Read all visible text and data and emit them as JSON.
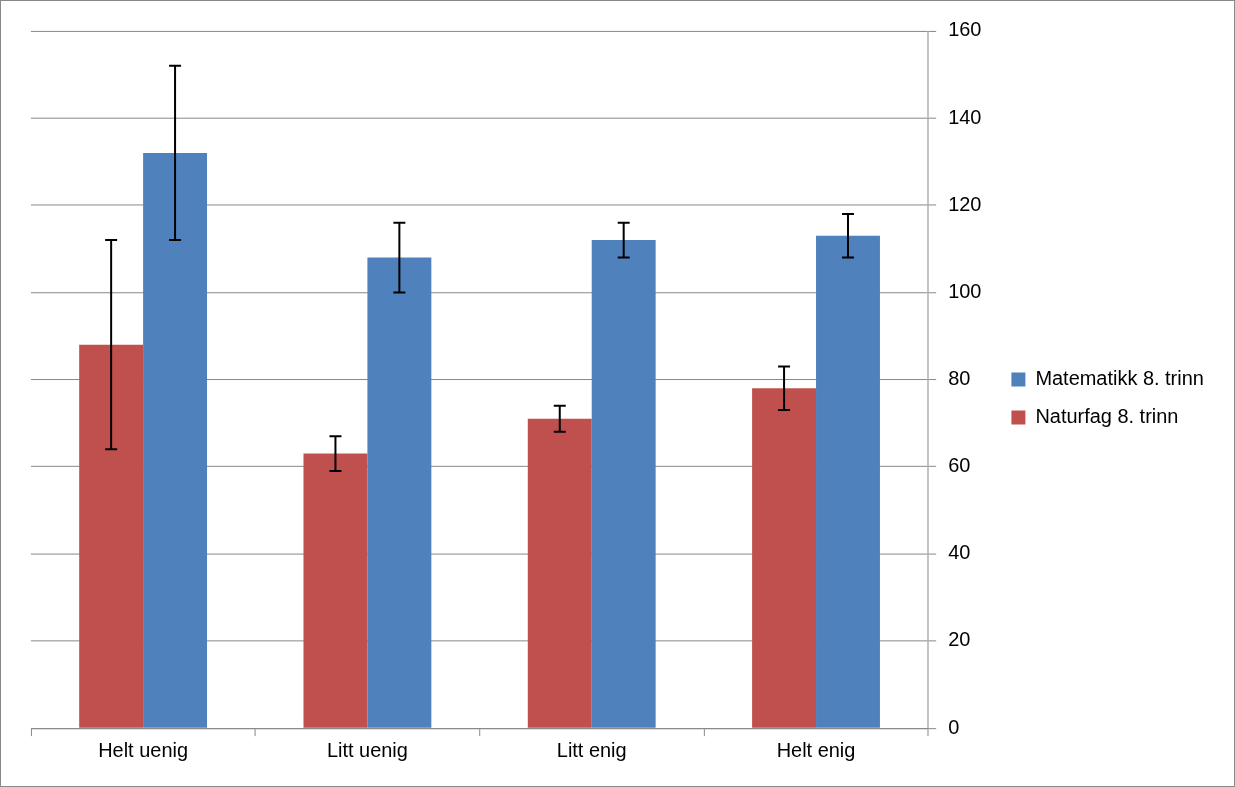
{
  "chart_data": {
    "type": "bar",
    "categories": [
      "Helt uenig",
      "Litt uenig",
      "Litt enig",
      "Helt enig"
    ],
    "series": [
      {
        "name": "Naturfag 8. trinn",
        "color": "#c0504d",
        "values": [
          88,
          63,
          71,
          78
        ],
        "errors": [
          24,
          4,
          3,
          5
        ]
      },
      {
        "name": "Matematikk 8. trinn",
        "color": "#4f81bd",
        "values": [
          132,
          108,
          112,
          113
        ],
        "errors": [
          20,
          8,
          4,
          5
        ]
      }
    ],
    "ylim": [
      0,
      160
    ],
    "yticks": [
      0,
      20,
      40,
      60,
      80,
      100,
      120,
      140,
      160
    ],
    "grid": "y",
    "legend": "right"
  }
}
